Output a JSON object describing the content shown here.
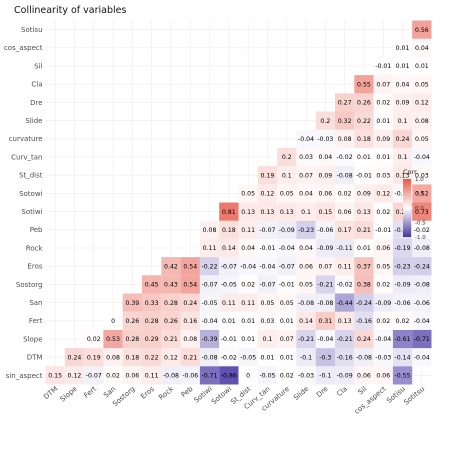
{
  "chart_data": {
    "type": "heatmap",
    "title": "Collinearity of variables",
    "xlabel": "",
    "ylabel": "",
    "variables": [
      "DTM",
      "Slope",
      "Fert",
      "San",
      "Sostorg",
      "Eros",
      "Rock",
      "Peb",
      "Sotiwi",
      "Sotowi",
      "St_dist",
      "Curv_tan",
      "curvature",
      "Slide",
      "Dre",
      "Cla",
      "Sil",
      "cos_aspect",
      "Sotisu",
      "Sotitsu"
    ],
    "y_order_top_to_bottom": [
      "Sotisu",
      "cos_aspect",
      "Sil",
      "Cla",
      "Dre",
      "Slide",
      "curvature",
      "Curv_tan",
      "St_dist",
      "Sotowi",
      "Sotiwi",
      "Peb",
      "Rock",
      "Eros",
      "Sostorg",
      "San",
      "Fert",
      "Slope",
      "DTM",
      "sin_aspect"
    ],
    "cells": [
      [],
      [
        0.24
      ],
      [
        0.19,
        0.02
      ],
      [
        0.08,
        0.53,
        0
      ],
      [
        0.18,
        0.28,
        0.26,
        0.39
      ],
      [
        0.22,
        0.29,
        0.28,
        0.33,
        0.45
      ],
      [
        0.12,
        0.21,
        0.26,
        0.28,
        0.43,
        0.42
      ],
      [
        0.21,
        0.08,
        0.16,
        0.24,
        0.54,
        0.54
      ],
      [
        -0.08,
        -0.39,
        -0.04,
        -0.05,
        -0.07,
        -0.22,
        0.11,
        0.08
      ],
      [
        -0.02,
        -0.01,
        0.01,
        0.11,
        -0.05,
        -0.07,
        0.14,
        0.18,
        0.81
      ],
      [
        -0.05,
        0.01,
        0.01,
        0.11,
        0.02,
        -0.04,
        0.04,
        0.11,
        0.13,
        0.05
      ],
      [
        0.01,
        0.1,
        0.03,
        0.05,
        -0.07,
        -0.04,
        -0.01,
        -0.07,
        0.13,
        0.12,
        0.19
      ],
      [
        0.01,
        0.07,
        0.01,
        0.05,
        -0.01,
        -0.07,
        -0.04,
        -0.09,
        0.13,
        0.05,
        0.1,
        0.2
      ],
      [
        -0.1,
        -0.21,
        0.14,
        -0.08,
        0.05,
        0.06,
        0.04,
        -0.23,
        0.1,
        0.04,
        0.07,
        0.03,
        -0.04
      ],
      [
        -0.3,
        -0.04,
        0.31,
        -0.08,
        -0.21,
        0.07,
        -0.09,
        -0.06,
        0.15,
        0.06,
        0.09,
        0.04,
        -0.03,
        0.2
      ],
      [
        -0.16,
        -0.21,
        0.13,
        -0.44,
        -0.02,
        0.11,
        -0.11,
        0.17,
        0.06,
        0.02,
        -0.08,
        -0.02,
        0.08,
        0.32,
        0.27
      ],
      [
        -0.08,
        0.24,
        -0.16,
        -0.24,
        0.38,
        0.37,
        0.01,
        0.21,
        0.13,
        0.09,
        -0.01,
        0.01,
        0.18,
        0.22,
        0.26,
        0.55
      ],
      [
        -0.03,
        -0.04,
        0.02,
        -0.09,
        0.02,
        0.05,
        0.06,
        -0.01,
        0.02,
        0.12,
        0.03,
        0.01,
        0.09,
        0.01,
        0.02,
        0.07,
        -0.01
      ],
      [
        -0.14,
        -0.61,
        0.02,
        -0.06,
        -0.09,
        -0.23,
        -0.19,
        -0.15,
        0.25,
        -0.03,
        0.13,
        0.1,
        0.24,
        0.1,
        0.09,
        0.04,
        0.01,
        0.01
      ],
      [
        -0.04,
        -0.71,
        -0.04,
        -0.06,
        -0.08,
        -0.24,
        -0.08,
        -0.02,
        0.73,
        0.52,
        0.03,
        -0.04,
        0.05,
        0.08,
        0.12,
        0.05,
        0.01,
        0.04,
        0.56
      ]
    ],
    "bottom_row_sin_aspect": [
      0.15,
      0.12,
      -0.07,
      0.02,
      0.06,
      0.11,
      -0.08,
      -0.06,
      -0.71,
      -0.86,
      0,
      -0.05,
      0.02,
      -0.03,
      -0.1,
      -0.09,
      0.06,
      0.06,
      -0.55
    ],
    "legend": {
      "title": "Corr",
      "ticks": [
        "1.0",
        "0.5",
        "0.0",
        "-0.5",
        "-1.0"
      ],
      "placement": "right",
      "colors": {
        "high": "#e8594a",
        "mid": "#ffffff",
        "low": "#4634a2"
      }
    },
    "grid": true
  }
}
